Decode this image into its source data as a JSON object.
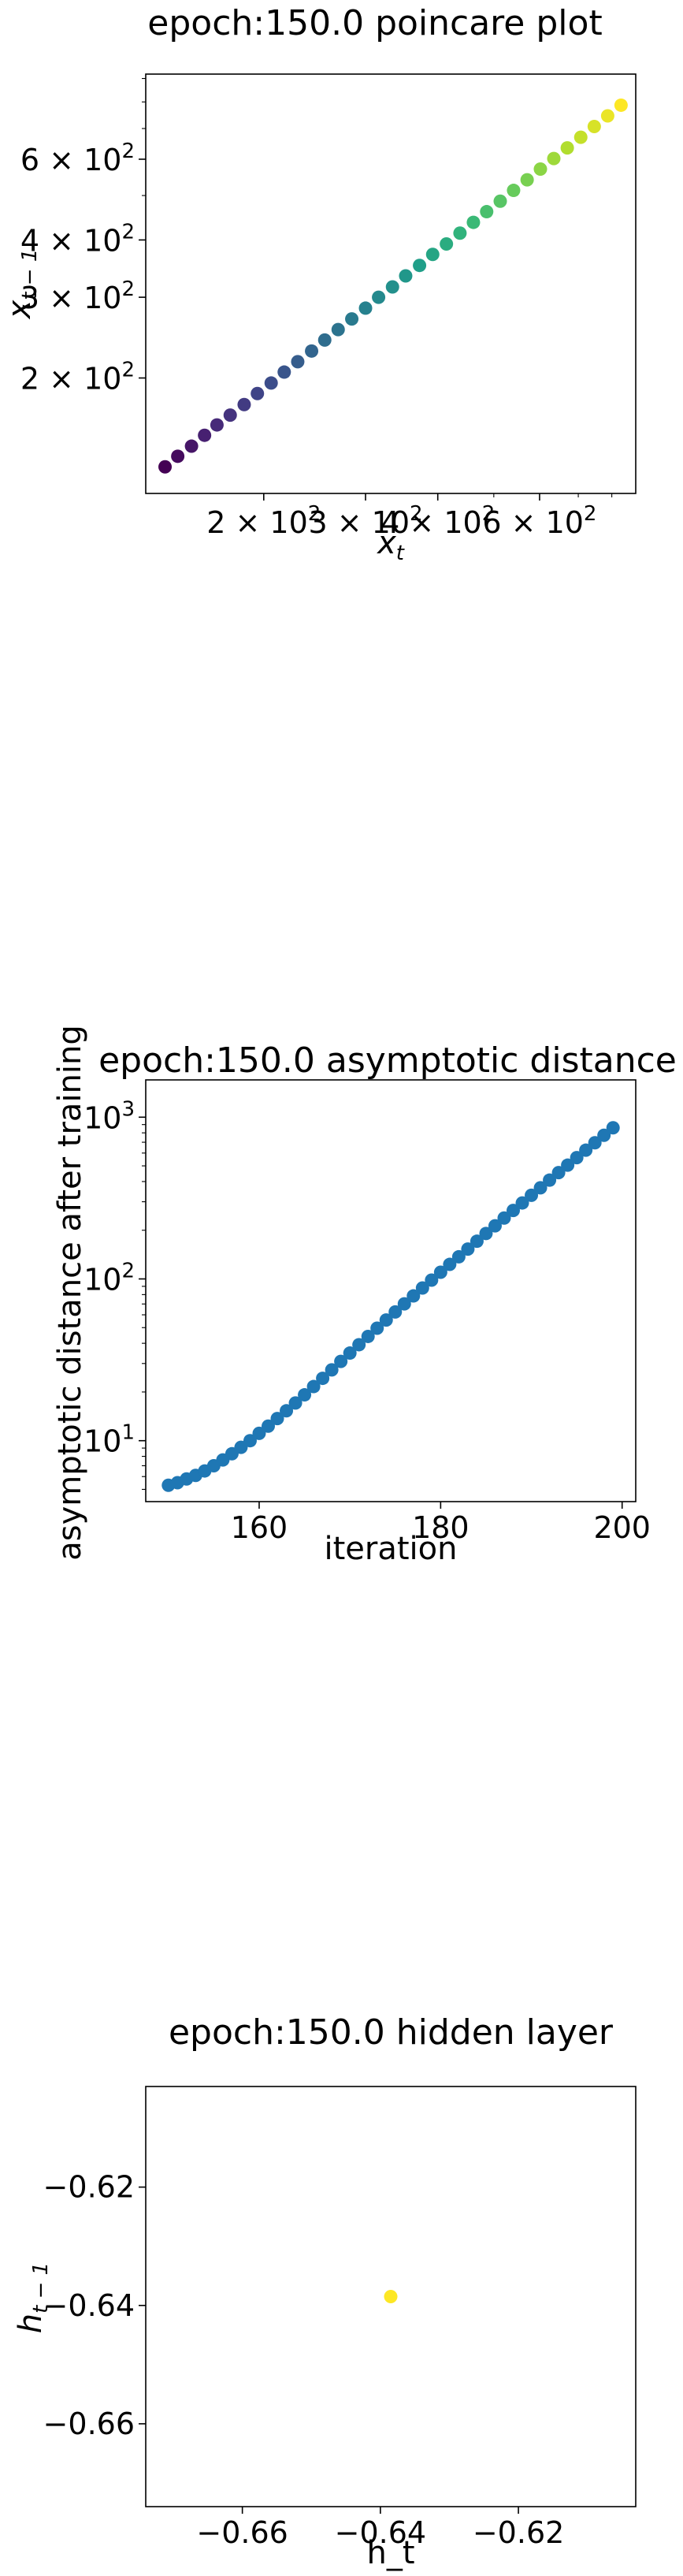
{
  "chart_data": [
    {
      "type": "scatter",
      "title": "epoch:150.0 poincare plot",
      "xlabel_main": "x",
      "xlabel_sub": "t",
      "ylabel_main": "x",
      "ylabel_sub": "t − 1",
      "x_scale": "log",
      "y_scale": "log",
      "xlim": [
        125,
        880
      ],
      "ylim": [
        112,
        920
      ],
      "x_ticks": [
        {
          "value": 200,
          "base": "2 × 10",
          "exp": "2"
        },
        {
          "value": 300,
          "base": "3 × 10",
          "exp": "2"
        },
        {
          "value": 400,
          "base": "4 × 10",
          "exp": "2"
        },
        {
          "value": 600,
          "base": "6 × 10",
          "exp": "2"
        }
      ],
      "y_ticks": [
        {
          "value": 200,
          "base": "2 × 10",
          "exp": "2"
        },
        {
          "value": 300,
          "base": "3 × 10",
          "exp": "2"
        },
        {
          "value": 400,
          "base": "4 × 10",
          "exp": "2"
        },
        {
          "value": 600,
          "base": "6 × 10",
          "exp": "2"
        }
      ],
      "colormap": "viridis",
      "x": [
        135,
        142,
        150,
        158,
        166,
        175,
        185,
        195,
        206,
        217,
        229,
        242,
        255,
        269,
        284,
        300,
        316,
        334,
        352,
        372,
        392,
        414,
        437,
        461,
        486,
        513,
        541,
        571,
        602,
        635,
        670,
        707,
        746,
        787,
        830
      ],
      "y": [
        128,
        135,
        142,
        150,
        158,
        166,
        175,
        185,
        195,
        206,
        217,
        229,
        242,
        255,
        269,
        284,
        300,
        316,
        334,
        352,
        372,
        392,
        414,
        437,
        461,
        486,
        513,
        541,
        571,
        602,
        635,
        670,
        707,
        746,
        787
      ]
    },
    {
      "type": "scatter",
      "title": "epoch:150.0 asymptotic distance",
      "xlabel": "iteration",
      "ylabel": "asymptotic distance after training",
      "x_scale": "linear",
      "y_scale": "log",
      "xlim": [
        147.5,
        201.5
      ],
      "ylim": [
        4.2,
        1700
      ],
      "x_ticks": [
        160,
        180,
        200
      ],
      "y_ticks": [
        {
          "value": 10,
          "base": "10",
          "exp": "1"
        },
        {
          "value": 100,
          "base": "10",
          "exp": "2"
        },
        {
          "value": 1000,
          "base": "10",
          "exp": "3"
        }
      ],
      "color": "#1f77b4",
      "x": [
        150,
        151,
        152,
        153,
        154,
        155,
        156,
        157,
        158,
        159,
        160,
        161,
        162,
        163,
        164,
        165,
        166,
        167,
        168,
        169,
        170,
        171,
        172,
        173,
        174,
        175,
        176,
        177,
        178,
        179,
        180,
        181,
        182,
        183,
        184,
        185,
        186,
        187,
        188,
        189,
        190,
        191,
        192,
        193,
        194,
        195,
        196,
        197,
        198,
        199
      ],
      "y": [
        5.3,
        5.5,
        5.8,
        6.1,
        6.5,
        7.0,
        7.6,
        8.3,
        9.1,
        10.0,
        11.1,
        12.3,
        13.7,
        15.3,
        17.1,
        19.2,
        21.6,
        24.3,
        27.4,
        30.9,
        34.8,
        39.2,
        44.1,
        49.6,
        55.7,
        62.5,
        70.1,
        78.5,
        87.9,
        98.3,
        110,
        123,
        137,
        153,
        171,
        191,
        213,
        238,
        265,
        295,
        329,
        366,
        408,
        454,
        505,
        562,
        625,
        695,
        773,
        860
      ]
    },
    {
      "type": "scatter",
      "title": "epoch:150.0 hidden layer",
      "xlabel": "h_t",
      "ylabel_main": "h",
      "ylabel_sub": "t − 1",
      "x_scale": "linear",
      "y_scale": "linear",
      "xlim": [
        -0.674,
        -0.603
      ],
      "ylim": [
        -0.674,
        -0.603
      ],
      "x_ticks": [
        {
          "value": -0.66,
          "label": "−0.66"
        },
        {
          "value": -0.64,
          "label": "−0.64"
        },
        {
          "value": -0.62,
          "label": "−0.62"
        }
      ],
      "y_ticks": [
        {
          "value": -0.62,
          "label": "−0.62"
        },
        {
          "value": -0.64,
          "label": "−0.64"
        },
        {
          "value": -0.66,
          "label": "−0.66"
        }
      ],
      "color": "#fde725",
      "x": [
        -0.6385
      ],
      "y": [
        -0.6385
      ]
    }
  ]
}
